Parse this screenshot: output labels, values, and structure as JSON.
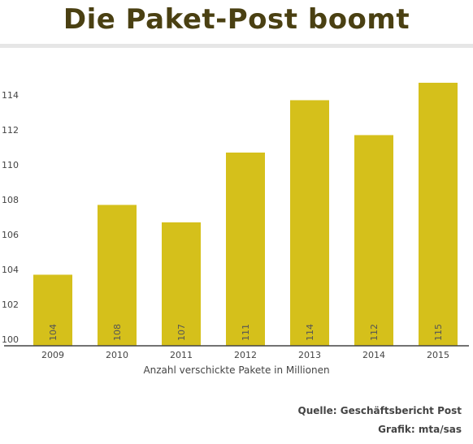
{
  "chart_data": {
    "type": "bar",
    "title": "Die Paket-Post boomt",
    "xlabel": "Anzahl verschickte Pakete in Millionen",
    "ylabel": "",
    "categories": [
      "2009",
      "2010",
      "2011",
      "2012",
      "2013",
      "2014",
      "2015"
    ],
    "values": [
      103.7,
      107.7,
      106.7,
      110.7,
      113.7,
      111.7,
      114.7
    ],
    "data_labels": [
      "104",
      "108",
      "107",
      "111",
      "114",
      "112",
      "115"
    ],
    "ylim": [
      100,
      115.5
    ],
    "yticks": [
      "100",
      "102",
      "104",
      "106",
      "108",
      "110",
      "112",
      "114"
    ],
    "grid": false,
    "bar_color": "#d5c01b"
  },
  "footer": {
    "source": "Quelle: Geschäftsbericht Post",
    "credit": "Grafik: mta/sas"
  }
}
